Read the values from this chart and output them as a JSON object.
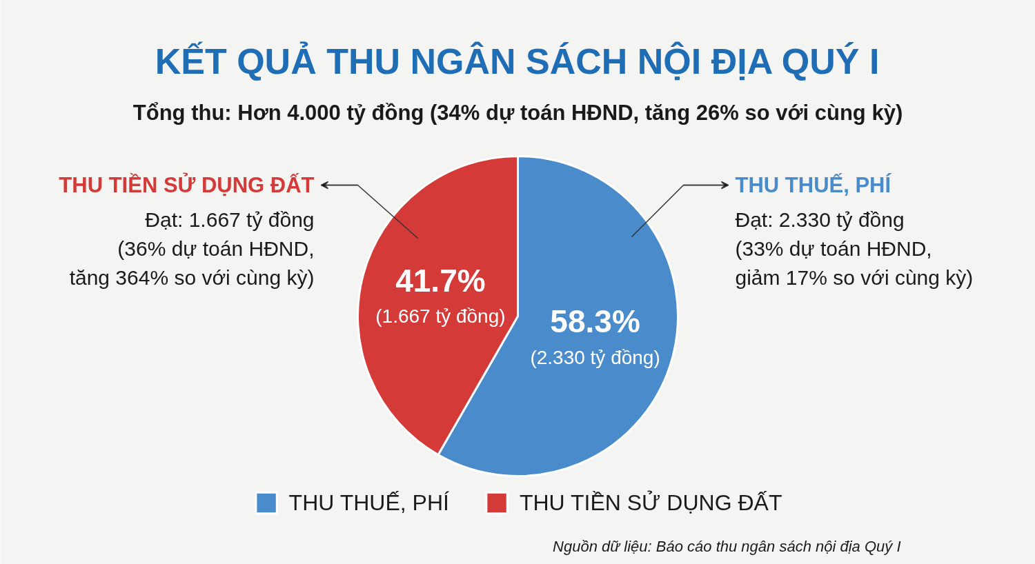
{
  "chart_data": {
    "type": "pie",
    "title": "KẾT QUẢ THU NGÂN SÁCH NỘI ĐỊA QUÝ I",
    "subtitle": "Tổng thu: Hơn 4.000 tỷ đồng (34% dự toán HĐND, tăng 26% so với cùng kỳ)",
    "categories": [
      "THU THUẾ, PHÍ",
      "THU TIỀN SỬ DỤNG ĐẤT"
    ],
    "values": [
      58.3,
      41.7
    ],
    "colors": [
      "#4a8ccb",
      "#d43a38"
    ],
    "value_labels": [
      "58.3%\n(2.330 tỷ đồng)",
      "41.7%\n(1.667 tỷ đồng)"
    ],
    "annotations": [
      "THU THUẾ, PHÍ\nĐạt: 2.330 tỷ đồng\n(33% dự toán HĐND,\ngiảm 17% so với cùng kỳ)",
      "THU TIỀN SỬ DỤNG ĐẤT\nĐạt: 1.667 tỷ đồng\n(36% dự toán HĐND,\ntăng 364% so với cùng kỳ)",
      "Nguồn dữ liệu: Báo cáo thu ngân sách nội địa Quý I"
    ],
    "legend": "bottom"
  }
}
